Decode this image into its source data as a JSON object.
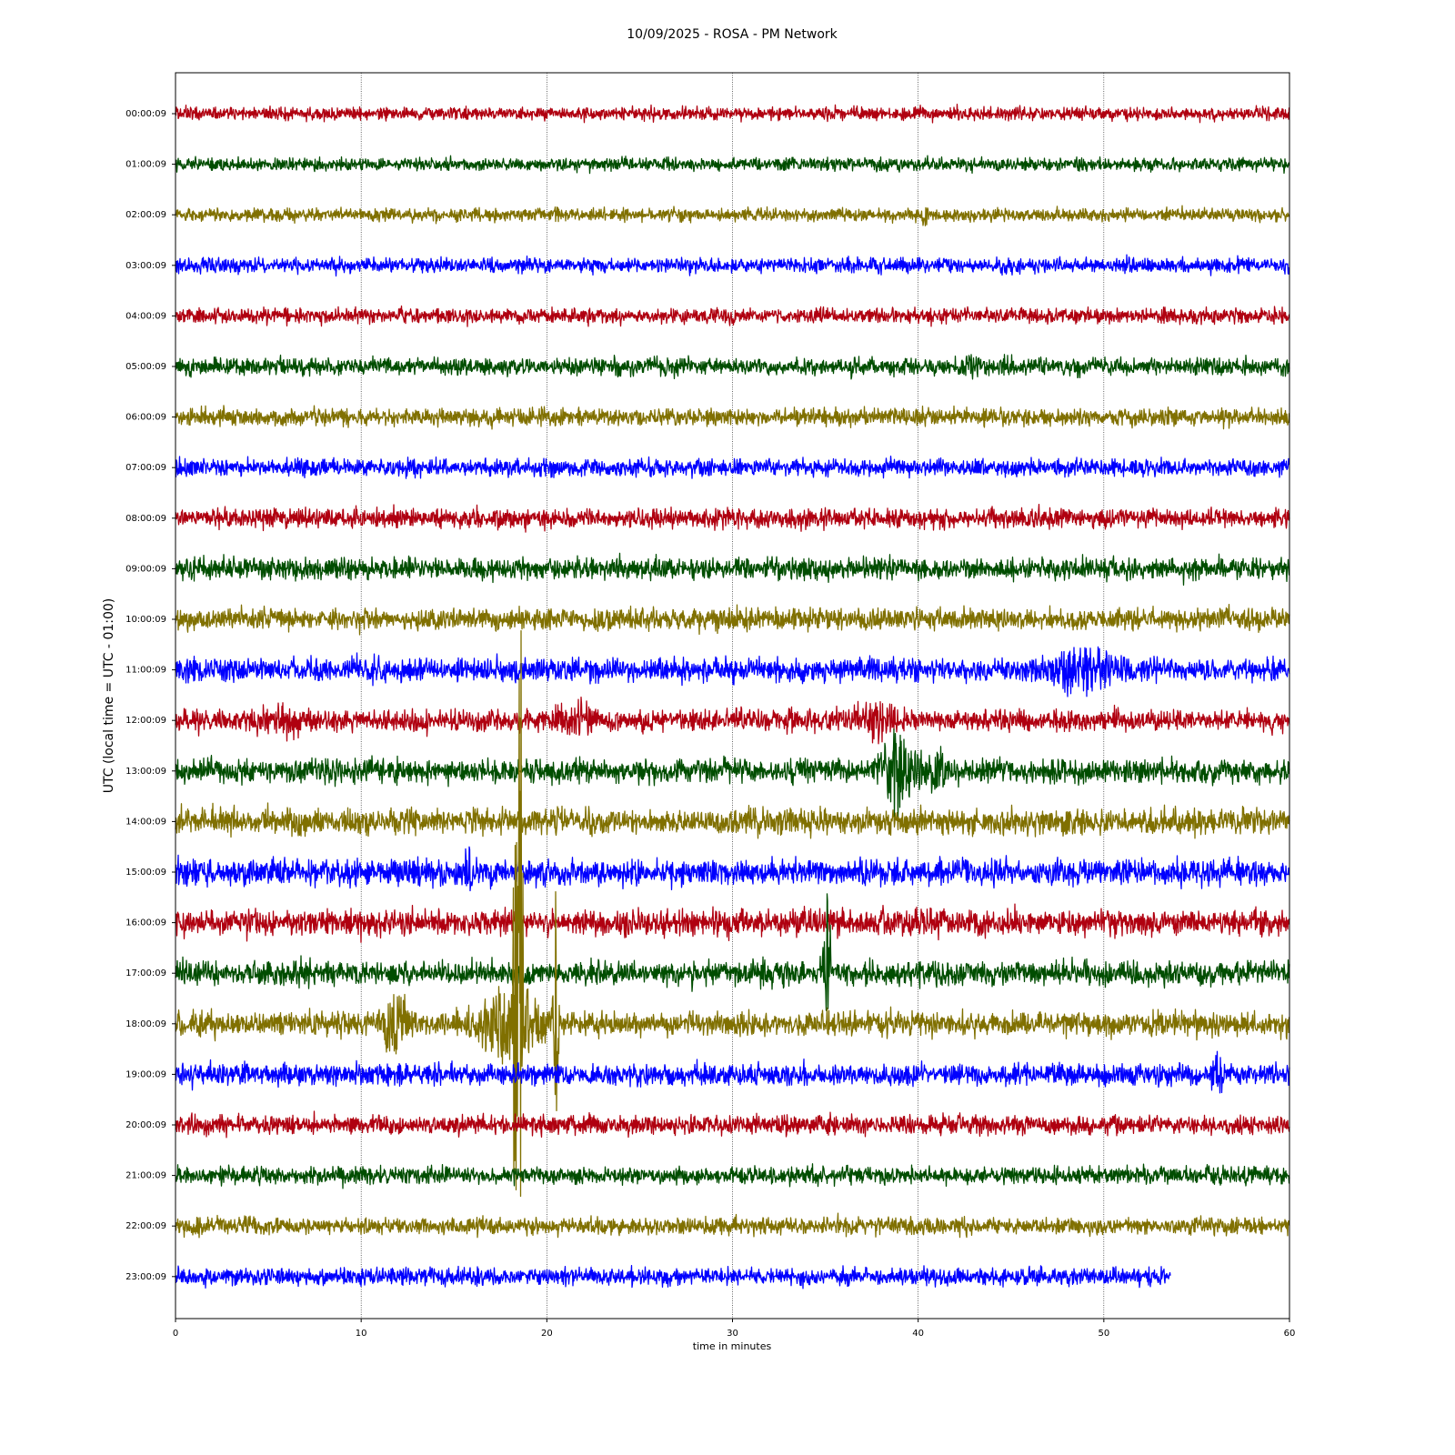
{
  "chart_data": {
    "type": "helicorder",
    "title": "10/09/2025 - ROSA - PM Network",
    "xlabel": "time in minutes",
    "ylabel": "UTC (local time = UTC - 01:00)",
    "xlim": [
      0,
      60
    ],
    "xticks": [
      0,
      10,
      20,
      30,
      40,
      50,
      60
    ],
    "grid": true,
    "categories": [
      "00:00:09",
      "01:00:09",
      "02:00:09",
      "03:00:09",
      "04:00:09",
      "05:00:09",
      "06:00:09",
      "07:00:09",
      "08:00:09",
      "09:00:09",
      "10:00:09",
      "11:00:09",
      "12:00:09",
      "13:00:09",
      "14:00:09",
      "15:00:09",
      "16:00:09",
      "17:00:09",
      "18:00:09",
      "19:00:09",
      "20:00:09",
      "21:00:09",
      "22:00:09",
      "23:00:09"
    ],
    "series": [
      {
        "color": "#b00010",
        "end": 60,
        "noise": 0.06,
        "events": []
      },
      {
        "color": "#004d00",
        "end": 60,
        "noise": 0.06,
        "events": []
      },
      {
        "color": "#807000",
        "end": 60,
        "noise": 0.06,
        "events": [
          {
            "x": 40.4,
            "up": 0.28,
            "down": 0.3,
            "width": 0.15
          }
        ]
      },
      {
        "color": "#0000ff",
        "end": 60,
        "noise": 0.07,
        "events": []
      },
      {
        "color": "#b00010",
        "end": 60,
        "noise": 0.07,
        "events": []
      },
      {
        "color": "#004d00",
        "end": 60,
        "noise": 0.08,
        "events": [
          {
            "x": 42.8,
            "up": 0.15,
            "down": 0.15,
            "width": 0.5
          },
          {
            "x": 44.8,
            "up": 0.15,
            "down": 0.15,
            "width": 0.5
          }
        ]
      },
      {
        "color": "#807000",
        "end": 60,
        "noise": 0.08,
        "events": []
      },
      {
        "color": "#0000ff",
        "end": 60,
        "noise": 0.08,
        "events": []
      },
      {
        "color": "#b00010",
        "end": 60,
        "noise": 0.09,
        "events": [
          {
            "x": 44,
            "up": 0.2,
            "down": 0.2,
            "width": 0.2
          }
        ]
      },
      {
        "color": "#004d00",
        "end": 60,
        "noise": 0.1,
        "events": []
      },
      {
        "color": "#807000",
        "end": 60,
        "noise": 0.1,
        "events": []
      },
      {
        "color": "#0000ff",
        "end": 60,
        "noise": 0.11,
        "events": [
          {
            "x": 48.5,
            "up": 0.45,
            "down": 0.45,
            "width": 2
          },
          {
            "x": 49,
            "up": 0.9,
            "down": 0.8,
            "width": 0.15
          }
        ]
      },
      {
        "color": "#b00010",
        "end": 60,
        "noise": 0.1,
        "events": [
          {
            "x": 5.5,
            "up": 0.3,
            "down": 0.3,
            "width": 1.5
          },
          {
            "x": 21.5,
            "up": 0.4,
            "down": 0.4,
            "width": 1
          },
          {
            "x": 37.7,
            "up": 0.35,
            "down": 0.35,
            "width": 1.2
          }
        ]
      },
      {
        "color": "#004d00",
        "end": 60,
        "noise": 0.11,
        "events": [
          {
            "x": 39,
            "up": 0.6,
            "down": 0.6,
            "width": 1.2
          },
          {
            "x": 38.7,
            "up": 1.0,
            "down": 0.9,
            "width": 0.3
          },
          {
            "x": 41,
            "up": 0.4,
            "down": 0.4,
            "width": 0.6
          }
        ]
      },
      {
        "color": "#807000",
        "end": 60,
        "noise": 0.12,
        "events": []
      },
      {
        "color": "#0000ff",
        "end": 60,
        "noise": 0.12,
        "events": [
          {
            "x": 15.8,
            "up": 0.5,
            "down": 0.35,
            "width": 0.2
          }
        ]
      },
      {
        "color": "#b00010",
        "end": 60,
        "noise": 0.12,
        "events": []
      },
      {
        "color": "#004d00",
        "end": 60,
        "noise": 0.11,
        "events": [
          {
            "x": 35.1,
            "up": 2.0,
            "down": 0.9,
            "width": 0.2
          },
          {
            "x": 7,
            "up": 0.2,
            "down": 0.2,
            "width": 0.6
          }
        ]
      },
      {
        "color": "#807000",
        "end": 60,
        "noise": 0.11,
        "events": [
          {
            "x": 11.8,
            "up": 0.6,
            "down": 0.6,
            "width": 0.8
          },
          {
            "x": 18,
            "up": 0.8,
            "down": 0.8,
            "width": 1.8
          },
          {
            "x": 18.6,
            "up": 10.4,
            "down": 4.7,
            "width": 0.15
          },
          {
            "x": 18.3,
            "up": 4.5,
            "down": 4.7,
            "width": 0.15
          },
          {
            "x": 20.5,
            "up": 2.7,
            "down": 1.8,
            "width": 0.15
          },
          {
            "x": 35.1,
            "up": 0.3,
            "down": 0.9,
            "width": 0.1
          }
        ]
      },
      {
        "color": "#0000ff",
        "end": 60,
        "noise": 0.1,
        "events": [
          {
            "x": 56.2,
            "up": 0.35,
            "down": 0.3,
            "width": 0.5
          }
        ]
      },
      {
        "color": "#b00010",
        "end": 60,
        "noise": 0.09,
        "events": []
      },
      {
        "color": "#004d00",
        "end": 60,
        "noise": 0.08,
        "events": []
      },
      {
        "color": "#807000",
        "end": 60,
        "noise": 0.08,
        "events": []
      },
      {
        "color": "#0000ff",
        "end": 53.6,
        "noise": 0.08,
        "events": []
      }
    ]
  }
}
